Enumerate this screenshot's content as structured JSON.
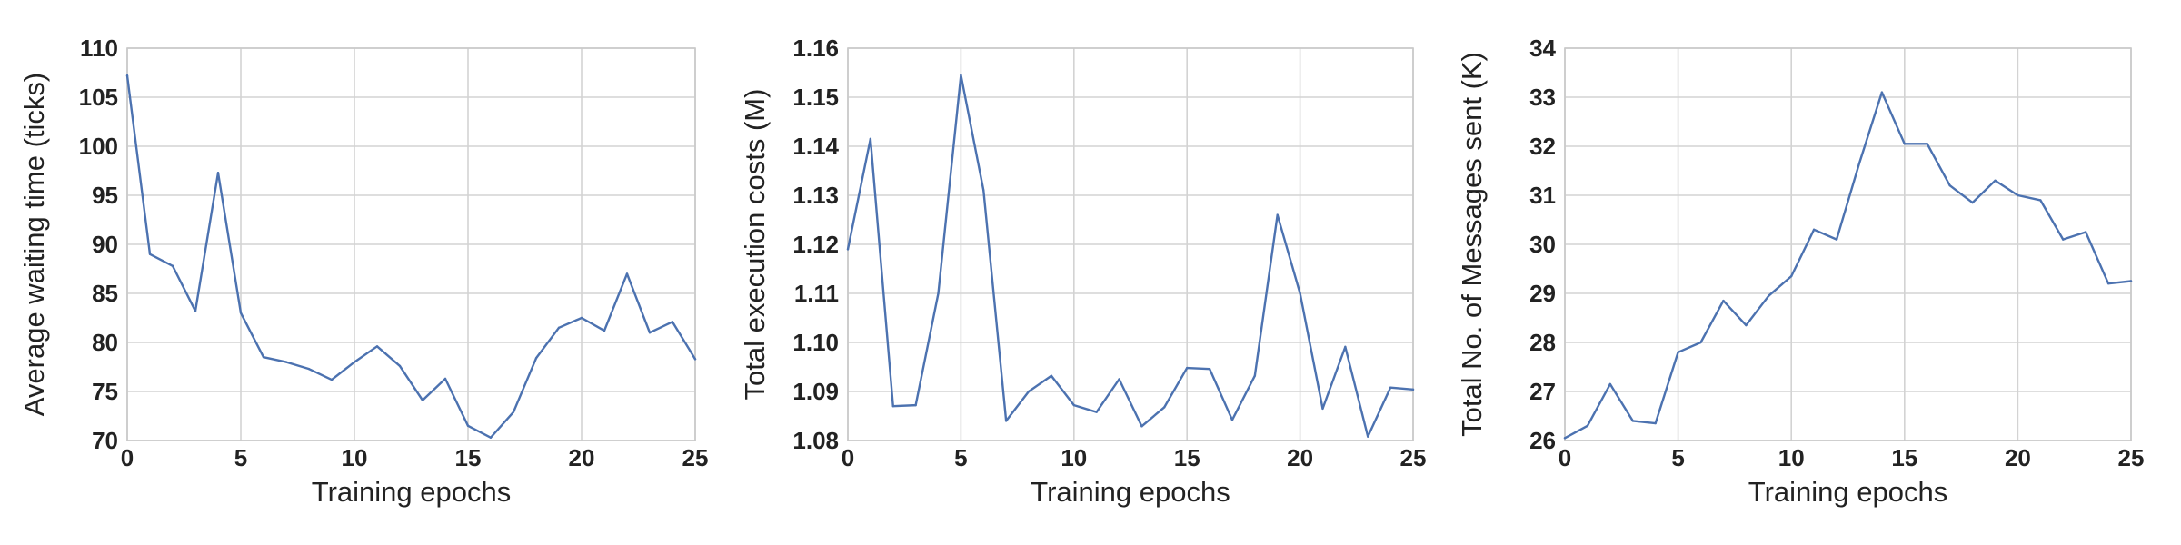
{
  "colors": {
    "series": "#4c72b0",
    "grid": "#d3d3d3",
    "text": "#222222"
  },
  "chart_data": [
    {
      "type": "line",
      "title": "",
      "xlabel": "Training epochs",
      "ylabel": "Average waiting time (ticks)",
      "xlim": [
        0,
        25
      ],
      "ylim": [
        70,
        110
      ],
      "xticks": [
        0,
        5,
        10,
        15,
        20,
        25
      ],
      "yticks": [
        70,
        75,
        80,
        85,
        90,
        95,
        100,
        105,
        110
      ],
      "x_tick_labels": [
        "0",
        "5",
        "10",
        "15",
        "20",
        "25"
      ],
      "y_tick_labels": [
        "70",
        "75",
        "80",
        "85",
        "90",
        "95",
        "100",
        "105",
        "110"
      ],
      "grid": true,
      "series": [
        {
          "x": [
            0,
            1,
            2,
            3,
            4,
            5,
            6,
            7,
            8,
            9,
            10,
            11,
            12,
            13,
            14,
            15,
            16,
            17,
            18,
            19,
            20,
            21,
            22,
            23,
            24,
            25
          ],
          "values": [
            107.2,
            89.0,
            87.8,
            83.2,
            97.3,
            83.0,
            78.5,
            78.0,
            77.3,
            76.2,
            78.0,
            79.6,
            77.6,
            74.1,
            76.3,
            71.5,
            70.3,
            72.9,
            78.4,
            81.5,
            82.5,
            81.2,
            87.0,
            81.0,
            82.1,
            78.3
          ]
        }
      ]
    },
    {
      "type": "line",
      "title": "",
      "xlabel": "Training epochs",
      "ylabel": "Total execution costs (M)",
      "xlim": [
        0,
        25
      ],
      "ylim": [
        1.08,
        1.16
      ],
      "xticks": [
        0,
        5,
        10,
        15,
        20,
        25
      ],
      "yticks": [
        1.08,
        1.09,
        1.1,
        1.11,
        1.12,
        1.13,
        1.14,
        1.15,
        1.16
      ],
      "x_tick_labels": [
        "0",
        "5",
        "10",
        "15",
        "20",
        "25"
      ],
      "y_tick_labels": [
        "1.08",
        "1.09",
        "1.10",
        "1.11",
        "1.12",
        "1.13",
        "1.14",
        "1.15",
        "1.16"
      ],
      "grid": true,
      "series": [
        {
          "x": [
            0,
            1,
            2,
            3,
            4,
            5,
            6,
            7,
            8,
            9,
            10,
            11,
            12,
            13,
            14,
            15,
            16,
            17,
            18,
            19,
            20,
            21,
            22,
            23,
            24,
            25
          ],
          "values": [
            1.119,
            1.1415,
            1.087,
            1.0872,
            1.11,
            1.1545,
            1.131,
            1.084,
            1.09,
            1.0932,
            1.0872,
            1.0858,
            1.0925,
            1.0829,
            1.0868,
            1.0948,
            1.0946,
            1.0842,
            1.0932,
            1.126,
            1.11,
            1.0865,
            1.0991,
            1.0808,
            1.0908,
            1.0904
          ]
        }
      ]
    },
    {
      "type": "line",
      "title": "",
      "xlabel": "Training epochs",
      "ylabel": "Total No. of Messages sent (K)",
      "xlim": [
        0,
        25
      ],
      "ylim": [
        26,
        34
      ],
      "xticks": [
        0,
        5,
        10,
        15,
        20,
        25
      ],
      "yticks": [
        26,
        27,
        28,
        29,
        30,
        31,
        32,
        33,
        34
      ],
      "x_tick_labels": [
        "0",
        "5",
        "10",
        "15",
        "20",
        "25"
      ],
      "y_tick_labels": [
        "26",
        "27",
        "28",
        "29",
        "30",
        "31",
        "32",
        "33",
        "34"
      ],
      "grid": true,
      "series": [
        {
          "x": [
            0,
            1,
            2,
            3,
            4,
            5,
            6,
            7,
            8,
            9,
            10,
            11,
            12,
            13,
            14,
            15,
            16,
            17,
            18,
            19,
            20,
            21,
            22,
            23,
            24,
            25
          ],
          "values": [
            26.05,
            26.3,
            27.15,
            26.4,
            26.35,
            27.8,
            28.0,
            28.85,
            28.35,
            28.95,
            29.35,
            30.3,
            30.1,
            31.65,
            33.1,
            32.05,
            32.05,
            31.2,
            30.85,
            31.3,
            31.0,
            30.9,
            30.1,
            30.25,
            29.2,
            29.25
          ]
        }
      ]
    }
  ]
}
